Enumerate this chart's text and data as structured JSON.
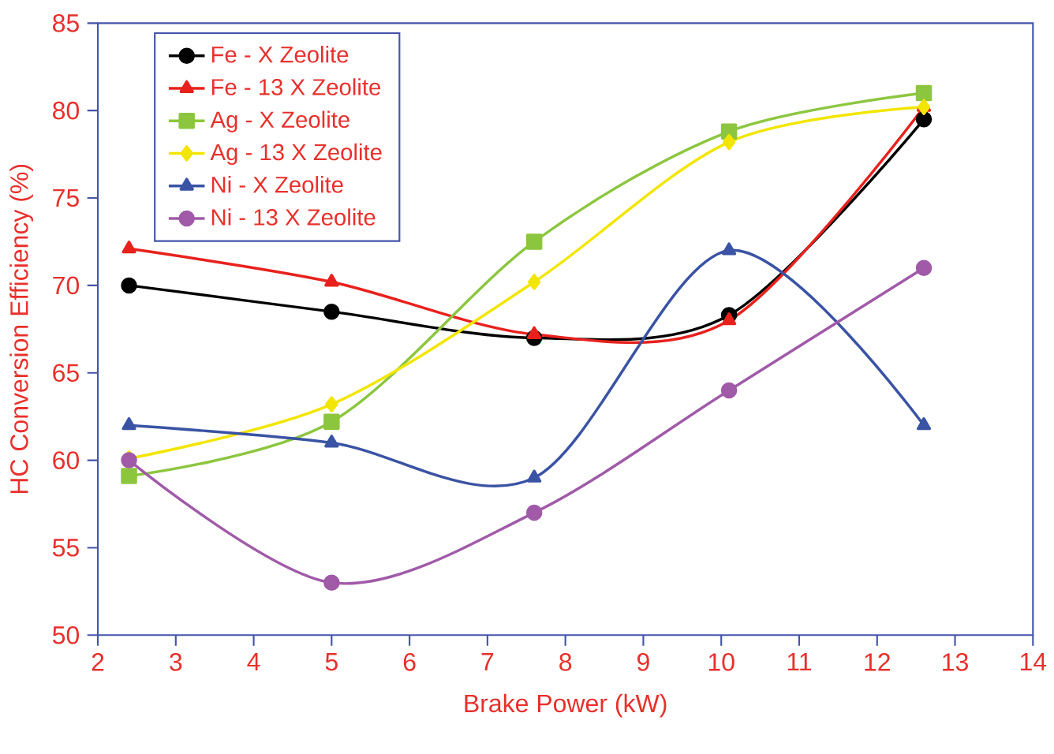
{
  "chart_data": {
    "type": "line",
    "xlabel": "Brake Power (kW)",
    "ylabel": "HC Conversion Efficiency (%)",
    "xlim": [
      2,
      14
    ],
    "xticks": [
      2,
      3,
      4,
      5,
      6,
      7,
      8,
      9,
      10,
      11,
      12,
      13,
      14
    ],
    "ylim": [
      50,
      85
    ],
    "yticks": [
      50,
      55,
      60,
      65,
      70,
      75,
      80,
      85
    ],
    "x": [
      2.4,
      5,
      7.6,
      10.1,
      12.6
    ],
    "legend": "top left",
    "grid": false,
    "line_style": "solid",
    "series": [
      {
        "name": "Fe - X Zeolite",
        "color": "#000000",
        "marker": "circle",
        "values": [
          70,
          68.5,
          67,
          68.3,
          79.5
        ]
      },
      {
        "name": "Fe - 13 X Zeolite",
        "color": "#e8211d",
        "marker": "triangle",
        "values": [
          72.1,
          70.2,
          67.2,
          68,
          80.2
        ]
      },
      {
        "name": "Ag - X  Zeolite",
        "color": "#8cc63f",
        "marker": "square",
        "values": [
          59.1,
          62.2,
          72.5,
          78.8,
          81
        ]
      },
      {
        "name": "Ag - 13 X Zeolite",
        "color": "#f2e600",
        "marker": "diamond",
        "values": [
          60.1,
          63.2,
          70.2,
          78.2,
          80.2
        ]
      },
      {
        "name": "Ni - X Zeolite",
        "color": "#3a53a4",
        "marker": "triangle",
        "values": [
          62,
          61,
          59,
          72,
          62
        ]
      },
      {
        "name": "Ni - 13 X Zeolite",
        "color": "#a05aa8",
        "marker": "circle",
        "values": [
          60,
          53,
          57,
          64,
          71
        ]
      }
    ]
  }
}
